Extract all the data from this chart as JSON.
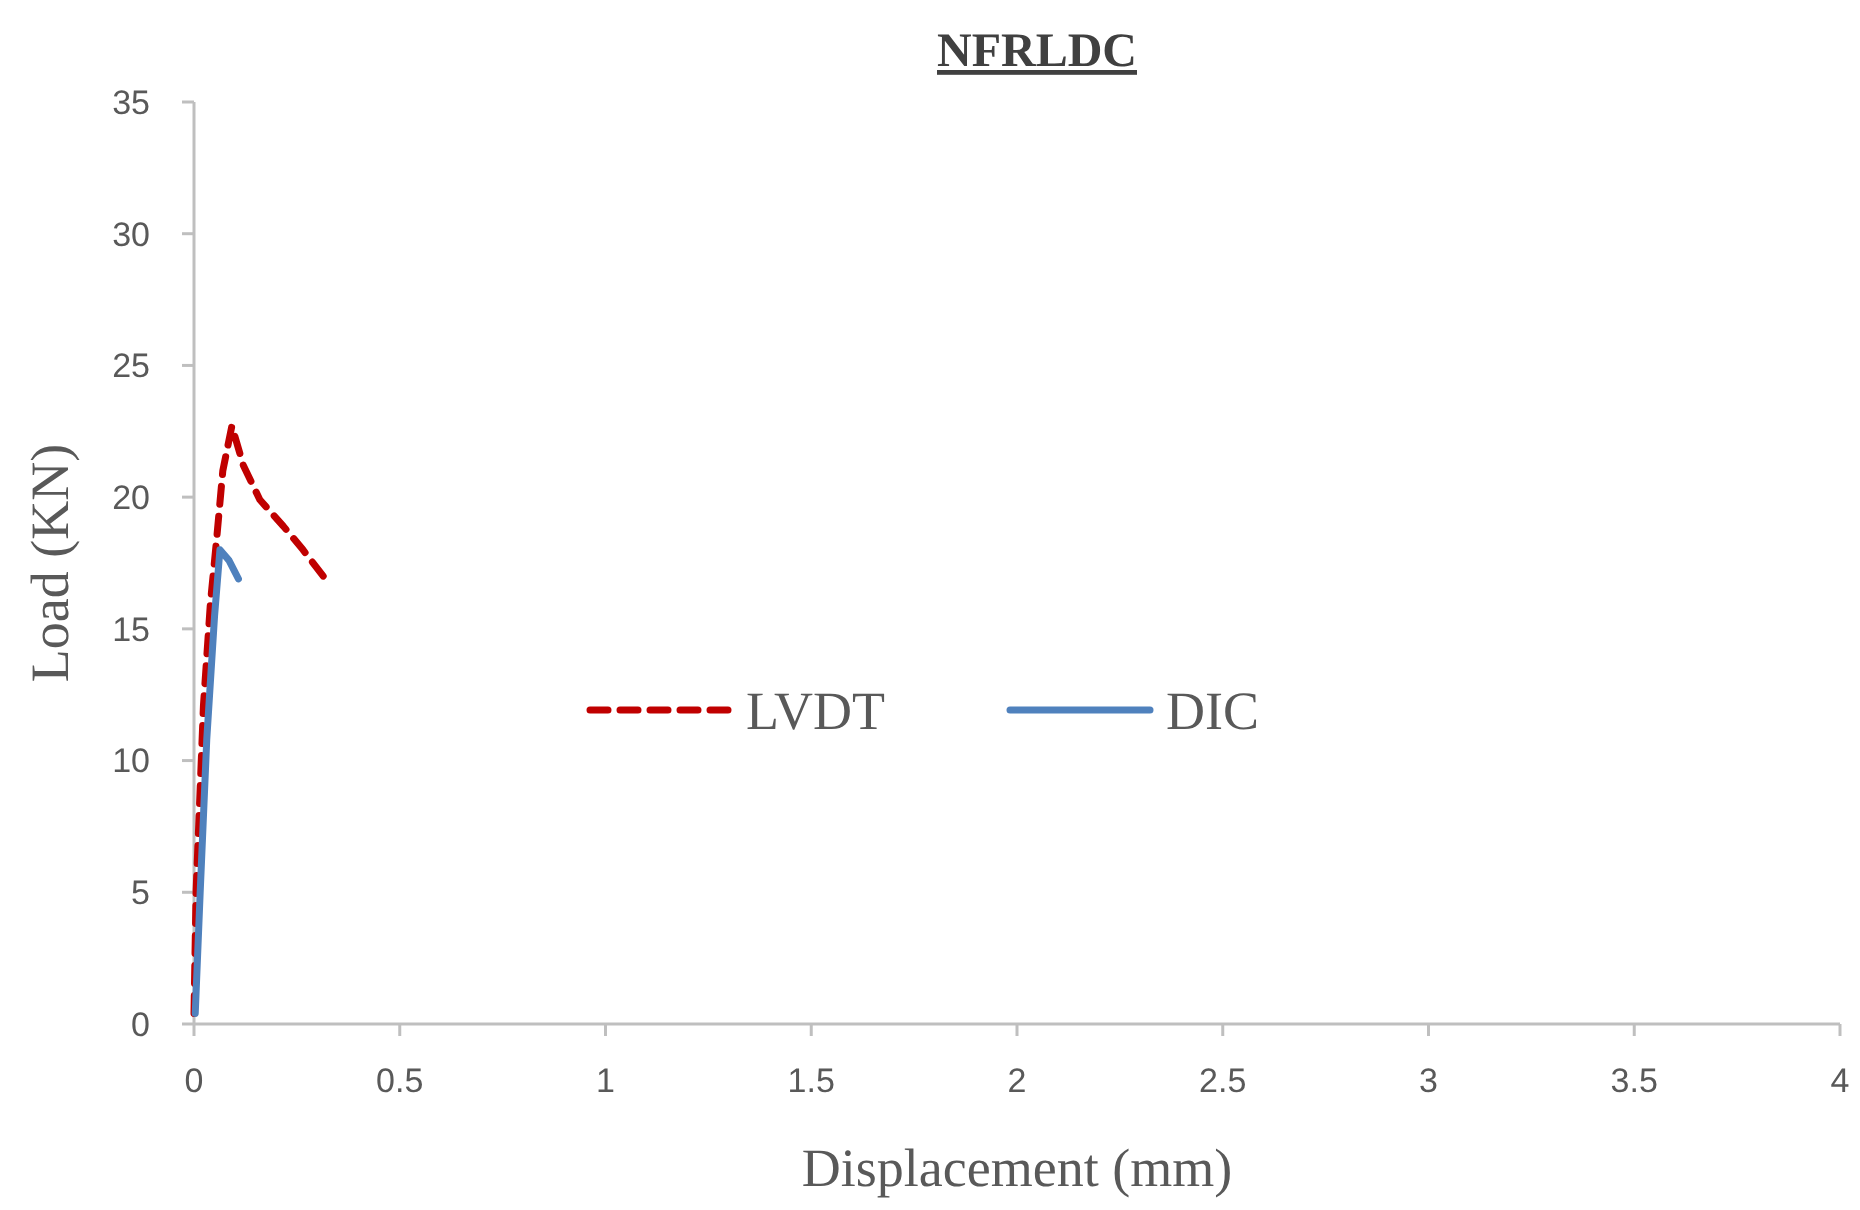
{
  "chart_data": {
    "type": "line",
    "title": "NFRLDC",
    "xlabel": "Displacement (mm)",
    "ylabel": "Load (KN)",
    "xlim": [
      0,
      4
    ],
    "xticks": [
      0,
      0.5,
      1,
      1.5,
      2,
      2.5,
      3,
      3.5,
      4
    ],
    "ylim": [
      0,
      35
    ],
    "yticks": [
      0,
      5,
      10,
      15,
      20,
      25,
      30,
      35
    ],
    "legend": "center",
    "grid": false,
    "series": [
      {
        "name": "LVDT",
        "color": "#c00000",
        "line_style": "dashed",
        "x": [
          0,
          0.005,
          0.023,
          0.04,
          0.055,
          0.07,
          0.092,
          0.12,
          0.16,
          0.217,
          0.265,
          0.314
        ],
        "values": [
          0.4,
          5,
          12.1,
          16,
          18.4,
          21,
          22.7,
          21.2,
          19.9,
          18.9,
          18,
          17
        ]
      },
      {
        "name": "DIC",
        "color": "#4f81bd",
        "line_style": "solid",
        "x": [
          0.003,
          0.015,
          0.031,
          0.05,
          0.063,
          0.085,
          0.108
        ],
        "values": [
          0.4,
          5,
          10.8,
          15.5,
          18,
          17.6,
          16.9
        ]
      }
    ]
  }
}
